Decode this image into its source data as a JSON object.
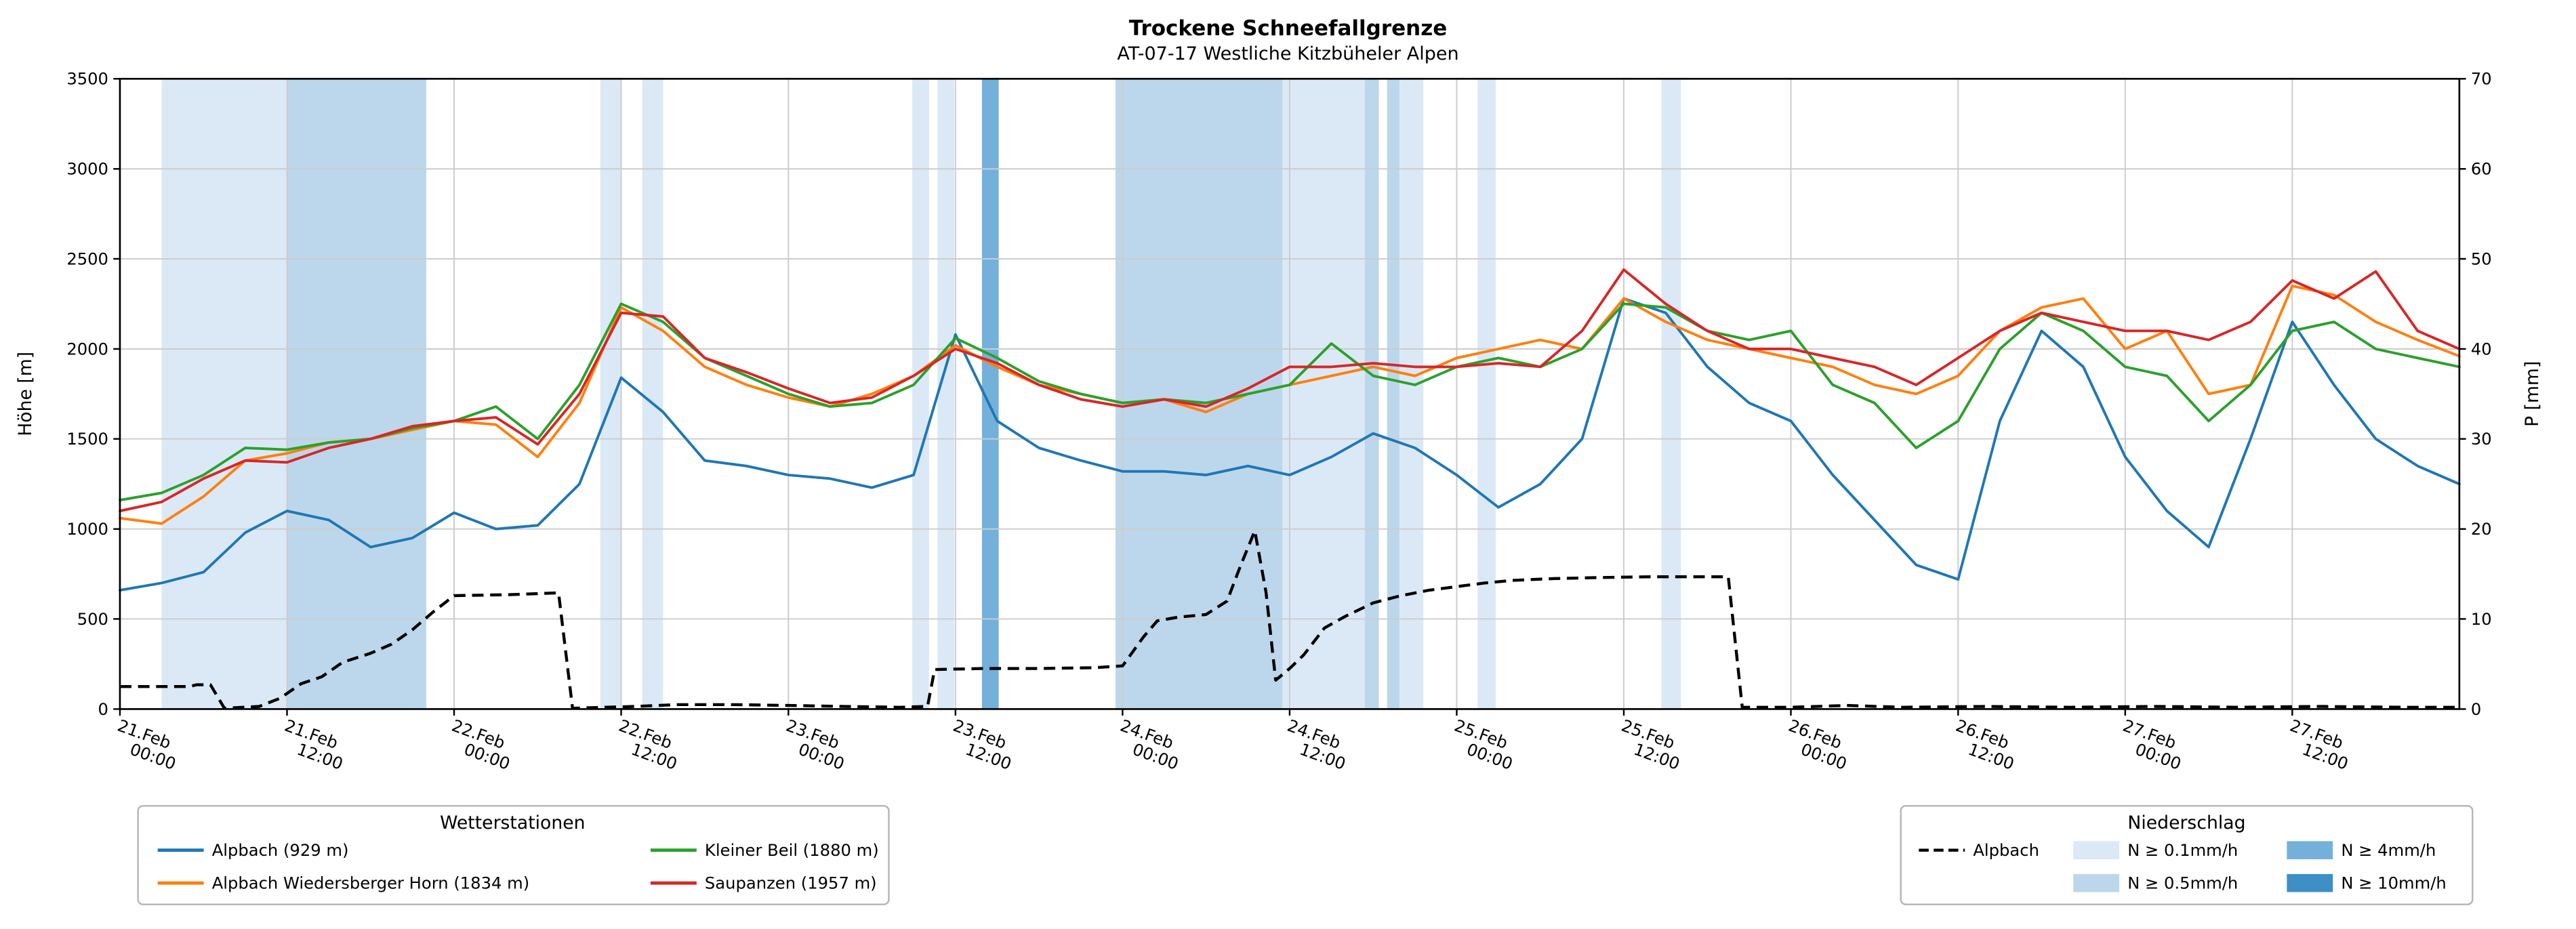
{
  "title": "Trockene Schneefallgrenze",
  "subtitle": "AT-07-17 Westliche Kitzbüheler Alpen",
  "chart_data": {
    "type": "line",
    "title": "Trockene Schneefallgrenze",
    "subtitle": "AT-07-17 Westliche Kitzbüheler Alpen",
    "grid": true,
    "x_range_hours": [
      0,
      168
    ],
    "x_hours_step": 3,
    "axes": {
      "left": {
        "label": "Höhe [m]",
        "range": [
          0,
          3500
        ],
        "ticks": [
          0,
          500,
          1000,
          1500,
          2000,
          2500,
          3000,
          3500
        ]
      },
      "right": {
        "label": "P [mm]",
        "range": [
          0,
          70
        ],
        "ticks": [
          0,
          10,
          20,
          30,
          40,
          50,
          60,
          70
        ]
      },
      "x": {
        "ticks": [
          {
            "hour": 0,
            "line1": "21.Feb",
            "line2": "00:00"
          },
          {
            "hour": 12,
            "line1": "21.Feb",
            "line2": "12:00"
          },
          {
            "hour": 24,
            "line1": "22.Feb",
            "line2": "00:00"
          },
          {
            "hour": 36,
            "line1": "22.Feb",
            "line2": "12:00"
          },
          {
            "hour": 48,
            "line1": "23.Feb",
            "line2": "00:00"
          },
          {
            "hour": 60,
            "line1": "23.Feb",
            "line2": "12:00"
          },
          {
            "hour": 72,
            "line1": "24.Feb",
            "line2": "00:00"
          },
          {
            "hour": 84,
            "line1": "24.Feb",
            "line2": "12:00"
          },
          {
            "hour": 96,
            "line1": "25.Feb",
            "line2": "00:00"
          },
          {
            "hour": 108,
            "line1": "25.Feb",
            "line2": "12:00"
          },
          {
            "hour": 120,
            "line1": "26.Feb",
            "line2": "00:00"
          },
          {
            "hour": 132,
            "line1": "26.Feb",
            "line2": "12:00"
          },
          {
            "hour": 144,
            "line1": "27.Feb",
            "line2": "00:00"
          },
          {
            "hour": 156,
            "line1": "27.Feb",
            "line2": "12:00"
          }
        ]
      }
    },
    "series": [
      {
        "name": "Alpbach (929 m)",
        "color": "#1f77b4",
        "axis": "left",
        "values": [
          660,
          700,
          760,
          980,
          1100,
          1050,
          900,
          950,
          1090,
          1000,
          1020,
          1250,
          1840,
          1650,
          1380,
          1350,
          1300,
          1280,
          1230,
          1300,
          2080,
          1600,
          1450,
          1380,
          1320,
          1320,
          1300,
          1350,
          1300,
          1400,
          1530,
          1450,
          1300,
          1120,
          1250,
          1500,
          2280,
          2200,
          1900,
          1700,
          1600,
          1300,
          1050,
          800,
          720,
          1600,
          2100,
          1900,
          1400,
          1100,
          900,
          1500,
          2150,
          1800,
          1500,
          1350,
          1250
        ]
      },
      {
        "name": "Alpbach Wiedersberger Horn (1834 m)",
        "color": "#ff7f0e",
        "axis": "left",
        "values": [
          1060,
          1030,
          1180,
          1380,
          1420,
          1480,
          1500,
          1550,
          1600,
          1580,
          1400,
          1700,
          2230,
          2100,
          1900,
          1800,
          1730,
          1680,
          1750,
          1850,
          2020,
          1900,
          1800,
          1750,
          1700,
          1720,
          1650,
          1750,
          1800,
          1850,
          1900,
          1850,
          1950,
          2000,
          2050,
          2000,
          2280,
          2150,
          2050,
          2000,
          1950,
          1900,
          1800,
          1750,
          1850,
          2100,
          2230,
          2280,
          2000,
          2100,
          1750,
          1800,
          2350,
          2300,
          2150,
          2050,
          1960
        ]
      },
      {
        "name": "Kleiner Beil (1880 m)",
        "color": "#2ca02c",
        "axis": "left",
        "values": [
          1160,
          1200,
          1300,
          1450,
          1440,
          1480,
          1500,
          1560,
          1600,
          1680,
          1500,
          1800,
          2250,
          2150,
          1950,
          1850,
          1750,
          1680,
          1700,
          1800,
          2060,
          1950,
          1820,
          1750,
          1700,
          1720,
          1700,
          1750,
          1800,
          2030,
          1850,
          1800,
          1900,
          1950,
          1900,
          2000,
          2250,
          2230,
          2100,
          2050,
          2100,
          1800,
          1700,
          1450,
          1600,
          2000,
          2200,
          2100,
          1900,
          1850,
          1600,
          1800,
          2100,
          2150,
          2000,
          1950,
          1900
        ]
      },
      {
        "name": "Saupanzen (1957 m)",
        "color": "#d62728",
        "axis": "left",
        "values": [
          1100,
          1150,
          1280,
          1380,
          1370,
          1450,
          1500,
          1570,
          1600,
          1620,
          1470,
          1750,
          2200,
          2180,
          1950,
          1870,
          1780,
          1700,
          1730,
          1850,
          2000,
          1920,
          1800,
          1720,
          1680,
          1720,
          1680,
          1780,
          1900,
          1900,
          1920,
          1900,
          1900,
          1920,
          1900,
          2100,
          2440,
          2250,
          2100,
          2000,
          2000,
          1950,
          1900,
          1800,
          1950,
          2100,
          2200,
          2150,
          2100,
          2100,
          2050,
          2150,
          2380,
          2280,
          2430,
          2100,
          2000
        ]
      }
    ],
    "precip_line": {
      "name": "Alpbach",
      "color": "#000000",
      "style": "dashed",
      "axis": "right",
      "points": [
        [
          0,
          2.5
        ],
        [
          5,
          2.5
        ],
        [
          5.5,
          2.7
        ],
        [
          6.5,
          2.7
        ],
        [
          7.5,
          0.1
        ],
        [
          10,
          0.3
        ],
        [
          11.5,
          1.2
        ],
        [
          13,
          2.8
        ],
        [
          14.5,
          3.6
        ],
        [
          16,
          5.2
        ],
        [
          18,
          6.2
        ],
        [
          19.5,
          7.2
        ],
        [
          21,
          8.8
        ],
        [
          22.5,
          10.8
        ],
        [
          24,
          12.6
        ],
        [
          28,
          12.7
        ],
        [
          31.5,
          12.9
        ],
        [
          32.5,
          0.1
        ],
        [
          37,
          0.3
        ],
        [
          40,
          0.5
        ],
        [
          44,
          0.5
        ],
        [
          48,
          0.4
        ],
        [
          52,
          0.3
        ],
        [
          56,
          0.2
        ],
        [
          58,
          0.3
        ],
        [
          58.5,
          4.4
        ],
        [
          62,
          4.5
        ],
        [
          66,
          4.5
        ],
        [
          70,
          4.6
        ],
        [
          72,
          4.8
        ],
        [
          73.5,
          8
        ],
        [
          74.5,
          9.8
        ],
        [
          76,
          10.2
        ],
        [
          78,
          10.5
        ],
        [
          79.5,
          12
        ],
        [
          80.5,
          16
        ],
        [
          81.5,
          19.8
        ],
        [
          82.3,
          13
        ],
        [
          83,
          3.2
        ],
        [
          84,
          4.5
        ],
        [
          85,
          6
        ],
        [
          86.5,
          9
        ],
        [
          88,
          10.3
        ],
        [
          90,
          11.8
        ],
        [
          92,
          12.6
        ],
        [
          94,
          13.2
        ],
        [
          96,
          13.6
        ],
        [
          98,
          14
        ],
        [
          100,
          14.3
        ],
        [
          103,
          14.5
        ],
        [
          106,
          14.6
        ],
        [
          110,
          14.7
        ],
        [
          115.5,
          14.7
        ],
        [
          116.5,
          0.2
        ],
        [
          120,
          0.2
        ],
        [
          124,
          0.4
        ],
        [
          128,
          0.2
        ],
        [
          134,
          0.3
        ],
        [
          140,
          0.2
        ],
        [
          146,
          0.3
        ],
        [
          152,
          0.2
        ],
        [
          158,
          0.3
        ],
        [
          164,
          0.2
        ],
        [
          168,
          0.2
        ]
      ]
    },
    "band_colors": {
      "0.1": "#dbe9f6",
      "0.5": "#bcd7eb",
      "4": "#73b1da",
      "10": "#3d8fc6"
    },
    "bands": [
      {
        "start": 3,
        "end": 12,
        "level": "0.1"
      },
      {
        "start": 12,
        "end": 22,
        "level": "0.5"
      },
      {
        "start": 34.5,
        "end": 36,
        "level": "0.1"
      },
      {
        "start": 37.5,
        "end": 39,
        "level": "0.1"
      },
      {
        "start": 56.9,
        "end": 58.1,
        "level": "0.1"
      },
      {
        "start": 58.7,
        "end": 59.9,
        "level": "0.1"
      },
      {
        "start": 61.9,
        "end": 63.1,
        "level": "4"
      },
      {
        "start": 71.5,
        "end": 83.5,
        "level": "0.5"
      },
      {
        "start": 83.5,
        "end": 89.4,
        "level": "0.1"
      },
      {
        "start": 89.4,
        "end": 90.4,
        "level": "0.5"
      },
      {
        "start": 91,
        "end": 91.9,
        "level": "0.5"
      },
      {
        "start": 91.9,
        "end": 93.6,
        "level": "0.1"
      },
      {
        "start": 97.5,
        "end": 98.8,
        "level": "0.1"
      },
      {
        "start": 110.7,
        "end": 112.1,
        "level": "0.1"
      }
    ]
  },
  "legends": {
    "stations": {
      "title": "Wetterstationen",
      "items": [
        {
          "label": "Alpbach (929 m)",
          "color": "#1f77b4"
        },
        {
          "label": "Alpbach Wiedersberger Horn (1834 m)",
          "color": "#ff7f0e"
        },
        {
          "label": "Kleiner Beil (1880 m)",
          "color": "#2ca02c"
        },
        {
          "label": "Saupanzen (1957 m)",
          "color": "#d62728"
        }
      ]
    },
    "precip": {
      "title": "Niederschlag",
      "line_label": "Alpbach",
      "levels": [
        {
          "label": "N ≥ 0.1mm/h",
          "color": "#dbe9f6"
        },
        {
          "label": "N ≥ 0.5mm/h",
          "color": "#bcd7eb"
        },
        {
          "label": "N ≥ 4mm/h",
          "color": "#73b1da"
        },
        {
          "label": "N ≥ 10mm/h",
          "color": "#3d8fc6"
        }
      ]
    }
  }
}
